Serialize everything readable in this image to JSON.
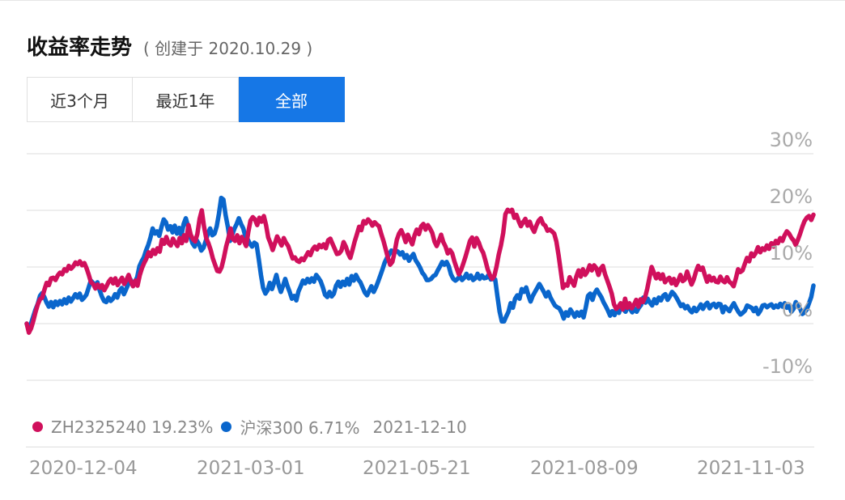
{
  "header": {
    "title": "收益率走势",
    "subtitle": "( 创建于 2020.10.29 )"
  },
  "tabs": [
    {
      "label": "近3个月",
      "active": false
    },
    {
      "label": "最近1年",
      "active": false
    },
    {
      "label": "全部",
      "active": true
    }
  ],
  "legend": {
    "s1": {
      "label": "ZH2325240 19.23%"
    },
    "s2": {
      "label": "沪深300 6.71%"
    },
    "date": "2021-12-10"
  },
  "colors": {
    "series1": "#d0105c",
    "series2": "#0a66cc",
    "accent": "#1677e6",
    "grid": "#e8e8e8",
    "axis_text": "#aaaaaa"
  },
  "chart_data": {
    "type": "line",
    "x_start": "2020-10-29",
    "x_end": "2021-12-10",
    "x_tick_labels": [
      "2020-12-04",
      "2021-03-01",
      "2021-05-21",
      "2021-08-09",
      "2021-11-03"
    ],
    "y_tick_labels": [
      "30%",
      "20%",
      "10%",
      "0%",
      "-10%"
    ],
    "y_ticks": [
      30,
      20,
      10,
      0,
      -10
    ],
    "ylim": [
      -10,
      30
    ],
    "grid": true,
    "series": [
      {
        "name": "ZH2325240",
        "final_value": 19.23,
        "values": [
          0,
          -1.6,
          -0.8,
          0.5,
          2.1,
          3.4,
          4.3,
          4.6,
          6.0,
          7.2,
          6.8,
          8.0,
          8.1,
          7.7,
          8.5,
          9.0,
          8.7,
          9.6,
          9.3,
          10.2,
          9.7,
          10.1,
          10.8,
          10.5,
          11.0,
          10.3,
          10.7,
          9.8,
          8.6,
          7.3,
          7.0,
          6.2,
          6.9,
          6.3,
          6.8,
          5.9,
          6.6,
          7.4,
          7.9,
          7.1,
          8.0,
          6.8,
          7.5,
          8.1,
          7.0,
          7.7,
          8.6,
          7.4,
          6.6,
          7.6,
          6.7,
          8.5,
          9.8,
          10.7,
          11.5,
          12.6,
          11.9,
          13.0,
          12.3,
          13.3,
          12.7,
          14.8,
          14.1,
          15.3,
          14.2,
          13.8,
          15.0,
          14.3,
          13.7,
          15.1,
          14.2,
          15.6,
          14.6,
          17.4,
          15.7,
          14.9,
          14.5,
          15.8,
          18.5,
          20.0,
          17.2,
          15.1,
          14.2,
          13.0,
          11.5,
          10.4,
          9.3,
          9.2,
          10.0,
          11.7,
          13.6,
          15.1,
          16.8,
          15.0,
          14.6,
          15.6,
          14.2,
          15.3,
          14.6,
          13.7,
          16.2,
          18.2,
          18.8,
          18.4,
          17.4,
          18.7,
          18.0,
          19.0,
          17.4,
          15.2,
          14.2,
          13.0,
          14.2,
          15.4,
          14.6,
          13.8,
          15.1,
          14.3,
          13.7,
          12.6,
          11.5,
          11.7,
          11.1,
          10.9,
          11.5,
          11.2,
          11.9,
          12.6,
          12.1,
          13.1,
          13.6,
          13.1,
          13.9,
          13.5,
          14.0,
          13.3,
          14.7,
          15.0,
          14.1,
          13.2,
          12.3,
          12.4,
          12.9,
          14.4,
          13.6,
          12.4,
          11.6,
          13.0,
          14.5,
          15.8,
          17.1,
          16.5,
          18.1,
          17.7,
          18.4,
          18.0,
          17.3,
          17.9,
          17.5,
          17.2,
          15.8,
          14.6,
          13.1,
          11.6,
          10.4,
          10.9,
          12.6,
          14.8,
          15.9,
          16.5,
          15.6,
          14.4,
          15.7,
          14.8,
          14.0,
          15.6,
          16.6,
          15.8,
          17.2,
          17.6,
          16.6,
          17.4,
          16.8,
          16.0,
          14.5,
          13.7,
          14.6,
          15.7,
          14.4,
          13.6,
          12.4,
          13.0,
          12.4,
          11.0,
          9.8,
          8.7,
          9.5,
          10.6,
          11.8,
          13.2,
          14.6,
          15.2,
          13.6,
          15.1,
          14.3,
          13.2,
          12.5,
          11.1,
          9.6,
          8.6,
          7.9,
          8.4,
          10.1,
          12.2,
          13.8,
          16.0,
          19.3,
          20.1,
          19.8,
          20.1,
          18.7,
          19.2,
          18.1,
          17.2,
          17.9,
          18.5,
          17.3,
          18.0,
          16.9,
          16.2,
          17.3,
          18.2,
          18.6,
          17.6,
          17.3,
          16.4,
          16.6,
          16.3,
          15.9,
          14.5,
          12.1,
          9.2,
          6.3,
          6.9,
          6.7,
          8.2,
          7.4,
          6.7,
          8.3,
          9.4,
          8.3,
          9.6,
          8.6,
          9.2,
          10.3,
          9.4,
          10.3,
          9.8,
          8.6,
          9.7,
          10.2,
          8.7,
          7.6,
          6.5,
          5.3,
          3.4,
          2.6,
          3.0,
          3.6,
          2.5,
          4.4,
          2.8,
          3.6,
          2.7,
          3.3,
          4.2,
          3.0,
          4.3,
          3.8,
          4.6,
          6.1,
          8.1,
          10.0,
          9.0,
          8.0,
          8.8,
          7.9,
          8.7,
          7.3,
          7.8,
          8.1,
          7.1,
          7.9,
          6.8,
          7.6,
          8.6,
          7.5,
          7.8,
          9.2,
          8.0,
          6.9,
          7.8,
          9.2,
          10.2,
          9.5,
          9.9,
          8.6,
          7.4,
          8.4,
          7.6,
          8.1,
          7.4,
          7.3,
          8.3,
          7.6,
          7.3,
          8.2,
          7.4,
          7.1,
          6.6,
          8.0,
          9.6,
          9.1,
          9.4,
          10.5,
          11.6,
          11.0,
          12.4,
          11.9,
          12.5,
          13.5,
          12.6,
          13.3,
          13.0,
          13.8,
          13.2,
          14.2,
          13.6,
          14.6,
          14.2,
          15.1,
          14.6,
          15.6,
          16.3,
          15.9,
          15.2,
          14.7,
          13.9,
          14.8,
          15.9,
          17.1,
          18.1,
          18.7,
          19.0,
          18.3,
          19.23
        ]
      },
      {
        "name": "沪深300",
        "final_value": 6.71,
        "values": [
          0,
          -0.8,
          0.1,
          1.3,
          2.5,
          3.5,
          4.9,
          5.4,
          4.7,
          3.7,
          3.0,
          3.8,
          2.9,
          3.9,
          3.3,
          4.0,
          3.4,
          4.3,
          3.6,
          4.6,
          3.9,
          4.5,
          5.2,
          4.6,
          5.3,
          4.2,
          4.6,
          5.1,
          6.3,
          7.6,
          7.2,
          6.6,
          7.3,
          5.9,
          4.8,
          4.0,
          3.8,
          4.6,
          4.0,
          4.4,
          5.2,
          4.6,
          5.8,
          6.3,
          5.2,
          6.1,
          7.0,
          7.8,
          6.8,
          7.4,
          8.2,
          10.1,
          11.0,
          11.7,
          12.9,
          13.9,
          15.2,
          16.8,
          15.9,
          16.3,
          15.5,
          17.1,
          18.4,
          17.9,
          16.6,
          17.2,
          16.1,
          17.3,
          15.9,
          16.9,
          15.6,
          17.6,
          18.6,
          17.2,
          15.4,
          14.2,
          13.6,
          14.7,
          14.0,
          12.9,
          13.4,
          14.6,
          15.9,
          16.8,
          15.6,
          15.9,
          17.2,
          19.4,
          22.2,
          21.9,
          19.2,
          17.1,
          14.6,
          15.7,
          16.8,
          17.6,
          18.6,
          17.6,
          16.8,
          15.3,
          14.9,
          14.1,
          13.6,
          14.3,
          14.0,
          11.4,
          8.6,
          6.3,
          5.3,
          5.9,
          7.2,
          6.1,
          7.3,
          8.6,
          6.8,
          5.6,
          6.7,
          7.9,
          6.6,
          5.6,
          4.4,
          4.9,
          4.1,
          5.7,
          6.6,
          7.6,
          7.1,
          7.9,
          7.3,
          8.0,
          7.4,
          8.6,
          8.1,
          7.5,
          6.4,
          5.1,
          4.7,
          5.6,
          4.8,
          5.3,
          6.7,
          7.4,
          6.5,
          7.4,
          6.8,
          7.9,
          6.9,
          8.4,
          7.6,
          8.6,
          7.8,
          7.3,
          6.4,
          5.5,
          5.0,
          5.8,
          6.6,
          5.6,
          6.4,
          7.4,
          8.5,
          9.6,
          10.8,
          11.6,
          12.2,
          12.9,
          12.4,
          12.9,
          12.7,
          12.2,
          12.6,
          11.6,
          12.1,
          11.1,
          11.8,
          12.3,
          11.2,
          10.6,
          9.9,
          9.0,
          8.5,
          7.7,
          7.7,
          7.9,
          8.4,
          8.6,
          9.4,
          10.1,
          10.9,
          10.4,
          10.9,
          10.1,
          8.7,
          7.9,
          7.6,
          7.9,
          8.4,
          7.7,
          8.1,
          8.8,
          8.0,
          8.5,
          7.7,
          8.0,
          8.8,
          7.9,
          8.5,
          8.0,
          8.1,
          8.6,
          7.8,
          7.9,
          7.8,
          4.8,
          2.1,
          0.4,
          0.4,
          1.3,
          2.1,
          3.6,
          2.8,
          4.4,
          5.0,
          4.4,
          6.1,
          5.6,
          6.4,
          5.0,
          3.9,
          4.9,
          5.6,
          6.3,
          7.0,
          6.3,
          5.6,
          4.8,
          5.6,
          4.6,
          3.9,
          3.2,
          2.9,
          2.7,
          2.0,
          0.9,
          2.0,
          1.4,
          2.5,
          1.9,
          1.2,
          2.0,
          1.4,
          2.1,
          1.1,
          2.9,
          4.9,
          5.3,
          4.2,
          5.4,
          6.0,
          5.3,
          4.7,
          3.8,
          3.1,
          2.3,
          1.4,
          2.2,
          1.5,
          2.6,
          1.9,
          3.1,
          2.5,
          2.1,
          3.0,
          2.6,
          2.0,
          2.7,
          2.1,
          2.8,
          3.3,
          4.6,
          3.7,
          4.4,
          3.7,
          3.2,
          4.3,
          3.6,
          4.6,
          4.1,
          4.9,
          5.2,
          4.2,
          4.8,
          5.6,
          5.2,
          4.6,
          3.9,
          3.1,
          3.4,
          2.7,
          3.1,
          2.4,
          2.0,
          2.8,
          2.2,
          2.7,
          3.4,
          2.6,
          3.3,
          3.7,
          2.7,
          3.3,
          3.5,
          2.9,
          3.5,
          3.4,
          2.0,
          3.0,
          2.6,
          2.2,
          3.0,
          3.6,
          2.8,
          2.1,
          1.6,
          1.9,
          2.3,
          3.2,
          3.0,
          2.8,
          2.2,
          2.8,
          1.7,
          2.3,
          3.2,
          3.3,
          2.9,
          3.2,
          3.4,
          2.8,
          3.2,
          2.9,
          3.5,
          3.0,
          3.6,
          2.8,
          3.1,
          2.1,
          2.6,
          3.8,
          3.1,
          2.6,
          1.7,
          2.0,
          2.5,
          3.6,
          4.7,
          6.71
        ]
      }
    ]
  }
}
